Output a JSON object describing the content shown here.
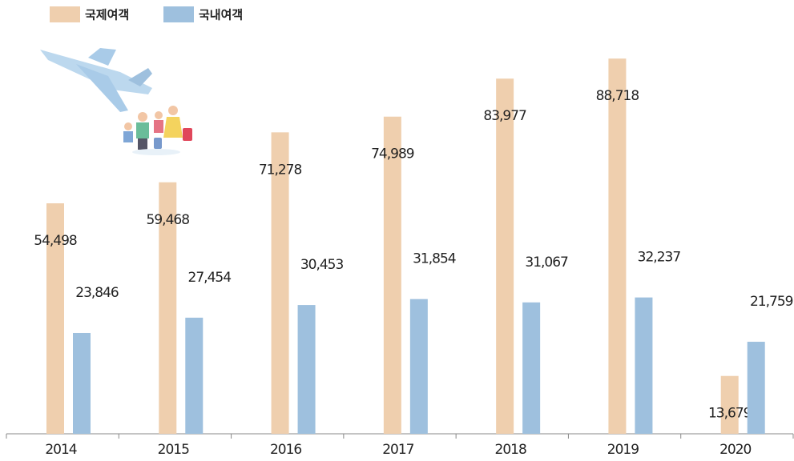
{
  "chart_data": {
    "type": "bar",
    "categories": [
      "2014",
      "2015",
      "2016",
      "2017",
      "2018",
      "2019",
      "2020"
    ],
    "series": [
      {
        "name": "국제여객",
        "color": "#efcfae",
        "values": [
          54498,
          59468,
          71278,
          74989,
          83977,
          88718,
          13679
        ],
        "value_labels": [
          "54,498",
          "59,468",
          "71,278",
          "74,989",
          "83,977",
          "88,718",
          "13,679"
        ]
      },
      {
        "name": "국내여객",
        "color": "#9ec0de",
        "values": [
          23846,
          27454,
          30453,
          31854,
          31067,
          32237,
          21759
        ],
        "value_labels": [
          "23,846",
          "27,454",
          "30,453",
          "31,854",
          "31,067",
          "32,237",
          "21,759"
        ]
      }
    ],
    "ylim": [
      0,
      95000
    ]
  }
}
